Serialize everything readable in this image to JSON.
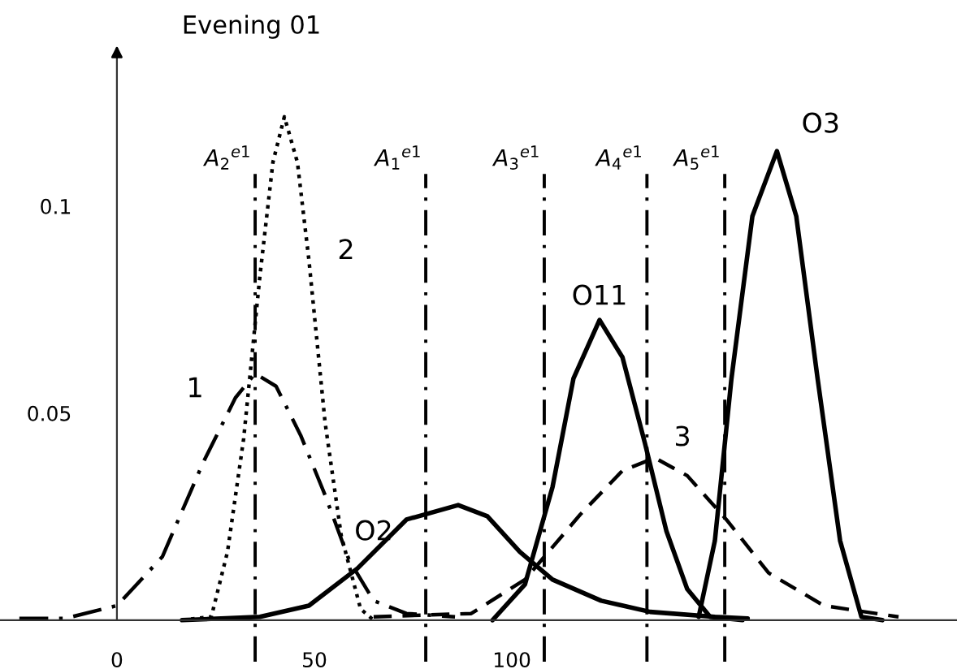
{
  "chart_data": {
    "type": "line",
    "title": "Evening 01",
    "xlim": [
      -29.6,
      212.7
    ],
    "ylim": [
      -0.0118,
      0.1498
    ],
    "xticks": [
      0,
      50,
      100
    ],
    "yticks": [
      0.05,
      0.1
    ],
    "legend": false,
    "marker": "none",
    "series": [
      {
        "name": "1",
        "color": "#000000",
        "line_style": "dashdot",
        "x": [
          -24.7,
          -13.2,
          0,
          11.5,
          21.8,
          30.0,
          35.0,
          40.3,
          46.5,
          52.7,
          58.8,
          65.0,
          73.3,
          85.6
        ],
        "values": [
          0.0004,
          0.0004,
          0.0035,
          0.0153,
          0.038,
          0.0537,
          0.0596,
          0.0565,
          0.0447,
          0.0302,
          0.0145,
          0.0047,
          0.0016,
          0.0008
        ]
      },
      {
        "name": "2",
        "color": "#000000",
        "line_style": "dotted",
        "x": [
          16.5,
          23.9,
          28.0,
          32.1,
          36.2,
          39.5,
          42.4,
          45.7,
          48.6,
          52.7,
          56.8,
          61.7,
          65.0
        ],
        "values": [
          0,
          0.0008,
          0.0165,
          0.0439,
          0.0831,
          0.1106,
          0.1216,
          0.1106,
          0.0871,
          0.0478,
          0.0204,
          0.0027,
          0
        ]
      },
      {
        "name": "O2",
        "color": "#000000",
        "line_style": "solid",
        "x": [
          16.5,
          36.2,
          48.6,
          60.9,
          73.3,
          86.4,
          93.8,
          102.0,
          110.3,
          122.6,
          135.0,
          151.4,
          159.7
        ],
        "values": [
          0,
          0.0008,
          0.0035,
          0.0125,
          0.0243,
          0.0278,
          0.0251,
          0.0165,
          0.0098,
          0.0047,
          0.002,
          0.0008,
          0.0004
        ]
      },
      {
        "name": "O11",
        "color": "#000000",
        "line_style": "solid",
        "x": [
          95.1,
          103.3,
          110.3,
          115.6,
          122.2,
          128.0,
          133.7,
          139.1,
          144.4,
          150.2,
          158.4
        ],
        "values": [
          0,
          0.0086,
          0.0322,
          0.0584,
          0.0725,
          0.0635,
          0.0427,
          0.0216,
          0.0075,
          0.0008,
          0
        ]
      },
      {
        "name": "3",
        "color": "#000000",
        "line_style": "dashed",
        "x": [
          65.0,
          89.7,
          103.3,
          117.3,
          128.0,
          136.2,
          144.4,
          154.3,
          165.0,
          179.0,
          197.9
        ],
        "values": [
          0.0008,
          0.0016,
          0.0098,
          0.0255,
          0.0361,
          0.0392,
          0.0349,
          0.0243,
          0.0114,
          0.0035,
          0.0008
        ]
      },
      {
        "name": "O3",
        "color": "#000000",
        "line_style": "solid",
        "x": [
          147.3,
          151.4,
          155.6,
          160.9,
          167.1,
          172.0,
          177.4,
          183.1,
          188.5,
          193.8
        ],
        "values": [
          0.0008,
          0.0192,
          0.0584,
          0.0976,
          0.1133,
          0.0976,
          0.0584,
          0.0192,
          0.0008,
          0
        ]
      }
    ],
    "ref_lines": [
      {
        "axis": "x",
        "value": 35.0,
        "label": "A$_{2}$$^{e1}$",
        "color": "#000000",
        "line_style": "dashdot"
      },
      {
        "axis": "x",
        "value": 78.2,
        "label": "A$_{1}$$^{e1}$",
        "color": "#000000",
        "line_style": "dashdot"
      },
      {
        "axis": "x",
        "value": 108.2,
        "label": "A$_{3}$$^{e1}$",
        "color": "#000000",
        "line_style": "dashdot"
      },
      {
        "axis": "x",
        "value": 134.2,
        "label": "A$_{4}$$^{e1}$",
        "color": "#000000",
        "line_style": "dashdot"
      },
      {
        "axis": "x",
        "value": 153.9,
        "label": "A$_{5}$$^{e1}$",
        "color": "#000000",
        "line_style": "dashdot"
      }
    ]
  }
}
